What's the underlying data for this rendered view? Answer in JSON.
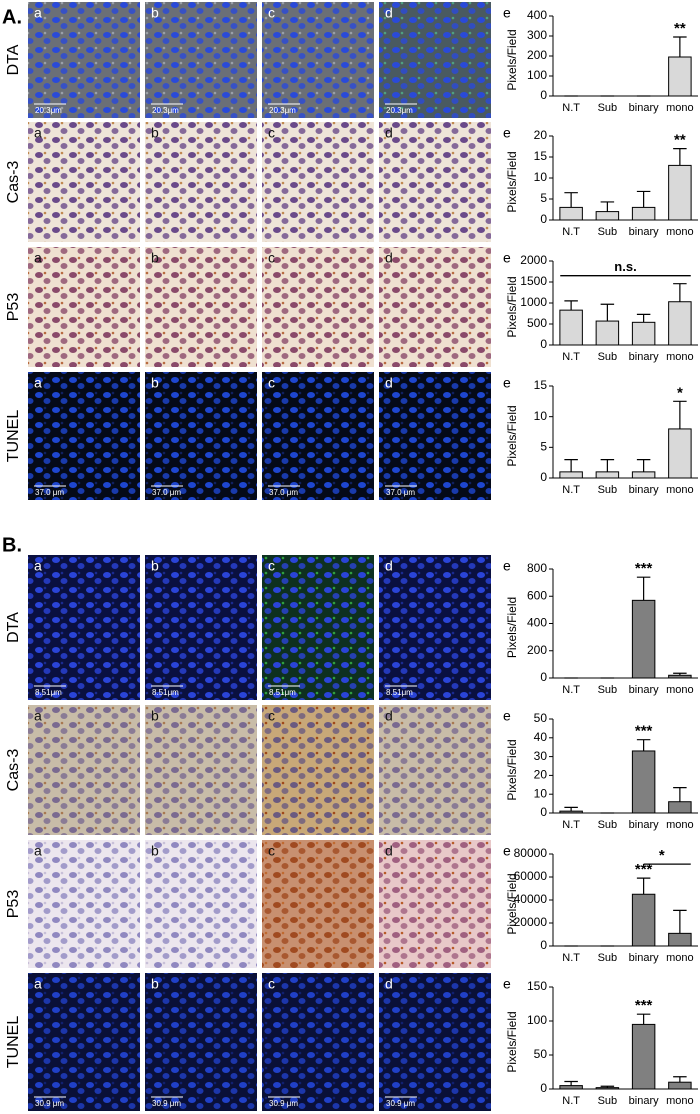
{
  "sections": [
    {
      "label": "A.",
      "rows": [
        {
          "label": "DTA",
          "panels": [
            "a",
            "b",
            "c",
            "d"
          ],
          "scale_bar": "20.3μm"
        },
        {
          "label": "Cas-3",
          "panels": [
            "a",
            "b",
            "c",
            "d"
          ]
        },
        {
          "label": "P53",
          "panels": [
            "a",
            "b",
            "c",
            "d"
          ]
        },
        {
          "label": "TUNEL",
          "panels": [
            "a",
            "b",
            "c",
            "d"
          ],
          "scale_bar": "37.0 μm"
        }
      ]
    },
    {
      "label": "B.",
      "rows": [
        {
          "label": "DTA",
          "panels": [
            "a",
            "b",
            "c",
            "d"
          ],
          "scale_bar": "8.51μm"
        },
        {
          "label": "Cas-3",
          "panels": [
            "a",
            "b",
            "c",
            "d"
          ]
        },
        {
          "label": "P53",
          "panels": [
            "a",
            "b",
            "c",
            "d"
          ]
        },
        {
          "label": "TUNEL",
          "panels": [
            "a",
            "b",
            "c",
            "d"
          ],
          "scale_bar": "30.9 μm"
        }
      ]
    }
  ],
  "chart_data": [
    {
      "type": "bar",
      "panel": "e",
      "ylabel": "Pixels/Field",
      "categories": [
        "N.T",
        "Sub",
        "binary",
        "mono"
      ],
      "values": [
        0,
        0,
        0,
        195
      ],
      "errors": [
        0,
        0,
        0,
        100
      ],
      "color": "#d9d9d9",
      "ylim": [
        0,
        400
      ],
      "yticks": [
        0,
        100,
        200,
        300,
        400
      ],
      "annotations": [
        {
          "text": "**",
          "from": "mono",
          "to": "mono"
        }
      ]
    },
    {
      "type": "bar",
      "panel": "e",
      "ylabel": "Pixels/Field",
      "categories": [
        "N.T",
        "Sub",
        "binary",
        "mono"
      ],
      "values": [
        3,
        2,
        3,
        13
      ],
      "errors": [
        3.5,
        2.3,
        3.8,
        4
      ],
      "color": "#d9d9d9",
      "ylim": [
        0,
        20
      ],
      "yticks": [
        0,
        5,
        10,
        15,
        20
      ],
      "annotations": [
        {
          "text": "**",
          "from": "mono",
          "to": "mono"
        }
      ]
    },
    {
      "type": "bar",
      "panel": "e",
      "ylabel": "Pixels/Field",
      "categories": [
        "N.T",
        "Sub",
        "binary",
        "mono"
      ],
      "values": [
        830,
        570,
        540,
        1030
      ],
      "errors": [
        220,
        400,
        190,
        430
      ],
      "color": "#d9d9d9",
      "ylim": [
        0,
        2000
      ],
      "yticks": [
        0,
        500,
        1000,
        1500,
        2000
      ],
      "annotations": [
        {
          "text": "n.s.",
          "from": "N.T",
          "to": "mono"
        }
      ]
    },
    {
      "type": "bar",
      "panel": "e",
      "ylabel": "Pixels/Field",
      "categories": [
        "N.T",
        "Sub",
        "binary",
        "mono"
      ],
      "values": [
        1,
        1,
        1,
        8
      ],
      "errors": [
        2,
        2,
        2,
        4.5
      ],
      "color": "#d9d9d9",
      "ylim": [
        0,
        15
      ],
      "yticks": [
        0,
        5,
        10,
        15
      ],
      "annotations": [
        {
          "text": "*",
          "from": "mono",
          "to": "mono"
        }
      ]
    },
    {
      "type": "bar",
      "panel": "e",
      "ylabel": "Pixels/Field",
      "categories": [
        "N.T",
        "Sub",
        "binary",
        "mono"
      ],
      "values": [
        0,
        0,
        570,
        20
      ],
      "errors": [
        0,
        0,
        170,
        15
      ],
      "color": "#808080",
      "ylim": [
        0,
        800
      ],
      "yticks": [
        0,
        200,
        400,
        600,
        800
      ],
      "annotations": [
        {
          "text": "***",
          "from": "binary",
          "to": "binary"
        }
      ]
    },
    {
      "type": "bar",
      "panel": "e",
      "ylabel": "Pixels/Field",
      "categories": [
        "N.T",
        "Sub",
        "binary",
        "mono"
      ],
      "values": [
        1,
        0,
        33,
        6
      ],
      "errors": [
        2,
        0,
        6,
        7.5
      ],
      "color": "#808080",
      "ylim": [
        0,
        50
      ],
      "yticks": [
        0,
        10,
        20,
        30,
        40,
        50
      ],
      "annotations": [
        {
          "text": "***",
          "from": "binary",
          "to": "binary"
        }
      ]
    },
    {
      "type": "bar",
      "panel": "e",
      "ylabel": "Pixels/Field",
      "categories": [
        "N.T",
        "Sub",
        "binary",
        "mono"
      ],
      "values": [
        0,
        0,
        45000,
        11000
      ],
      "errors": [
        0,
        0,
        14000,
        20000
      ],
      "color": "#808080",
      "ylim": [
        0,
        80000
      ],
      "yticks": [
        0,
        20000,
        40000,
        60000,
        80000
      ],
      "annotations": [
        {
          "text": "***",
          "from": "binary",
          "to": "binary"
        },
        {
          "text": "*",
          "from": "binary",
          "to": "mono"
        }
      ]
    },
    {
      "type": "bar",
      "panel": "e",
      "ylabel": "Pixels/Field",
      "categories": [
        "N.T",
        "Sub",
        "binary",
        "mono"
      ],
      "values": [
        5,
        2,
        95,
        10
      ],
      "errors": [
        6,
        2,
        15,
        8
      ],
      "color": "#808080",
      "ylim": [
        0,
        150
      ],
      "yticks": [
        0,
        50,
        100,
        150
      ],
      "annotations": [
        {
          "text": "***",
          "from": "binary",
          "to": "binary"
        }
      ]
    }
  ]
}
